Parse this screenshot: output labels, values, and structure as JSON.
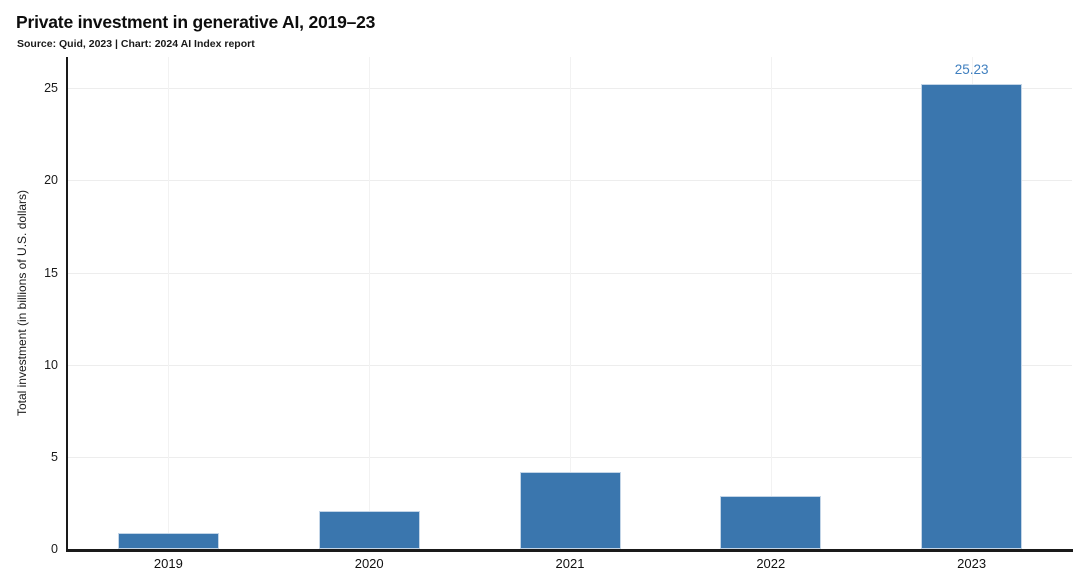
{
  "header": {
    "title": "Private investment in generative AI, 2019–23",
    "subtitle": "Source: Quid, 2023 | Chart: 2024 AI Index report"
  },
  "chart_data": {
    "type": "bar",
    "title": "Private investment in generative AI, 2019–23",
    "subtitle": "Source: Quid, 2023 | Chart: 2024 AI Index report",
    "categories": [
      "2019",
      "2020",
      "2021",
      "2022",
      "2023"
    ],
    "values": [
      0.85,
      2.07,
      4.2,
      2.85,
      25.23
    ],
    "data_labels": [
      "",
      "",
      "",
      "",
      "25.23"
    ],
    "xlabel": "",
    "ylabel": "Total investment (in billions of U.S. dollars)",
    "yticks": [
      0,
      5,
      10,
      15,
      20,
      25
    ],
    "ylim": [
      0,
      26.7
    ],
    "grid": true,
    "legend": "none",
    "bar_color": "#3a76ae",
    "bar_edge_color": "#c3d5e7",
    "data_label_color": "#3f7fbf",
    "axis_color": "#1a1a1a"
  }
}
